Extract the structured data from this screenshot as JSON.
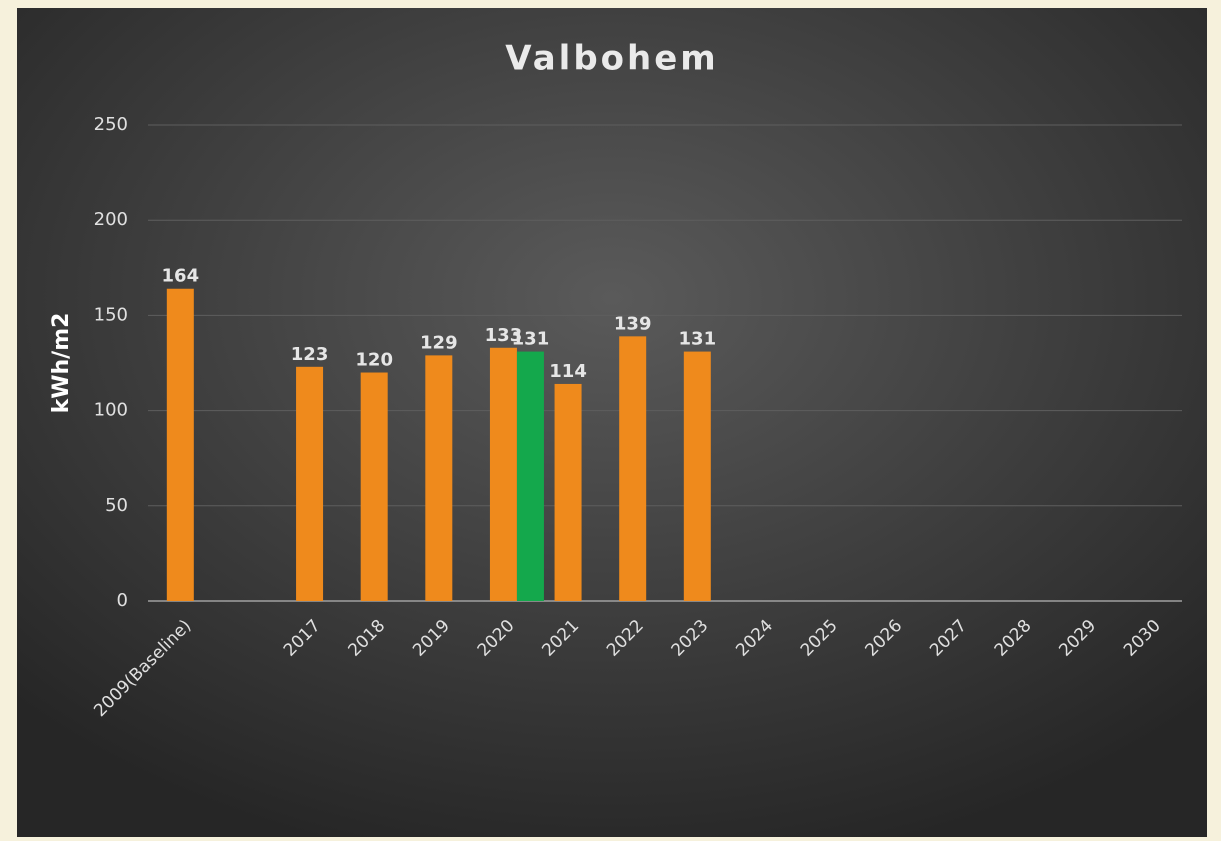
{
  "chart_data": {
    "type": "bar",
    "title": "Valbohem",
    "ylabel": "kWh/m2",
    "categories": [
      "2009(Baseline)",
      null,
      "2017",
      "2018",
      "2019",
      "2020",
      "2021",
      "2022",
      "2023",
      "2024",
      "2025",
      "2026",
      "2027",
      "2028",
      "2029",
      "2030"
    ],
    "series": [
      {
        "color": "#ef8a1c",
        "values": [
          164,
          null,
          123,
          120,
          129,
          133,
          114,
          139,
          131,
          null,
          null,
          null,
          null,
          null,
          null,
          null
        ]
      },
      {
        "color": "#14a84c",
        "values": [
          null,
          null,
          null,
          null,
          null,
          131,
          null,
          null,
          null,
          null,
          null,
          null,
          null,
          null,
          null,
          null
        ]
      }
    ],
    "ylim": [
      0,
      250
    ],
    "yticks": [
      0,
      50,
      100,
      150,
      200,
      250
    ],
    "grid": true
  }
}
